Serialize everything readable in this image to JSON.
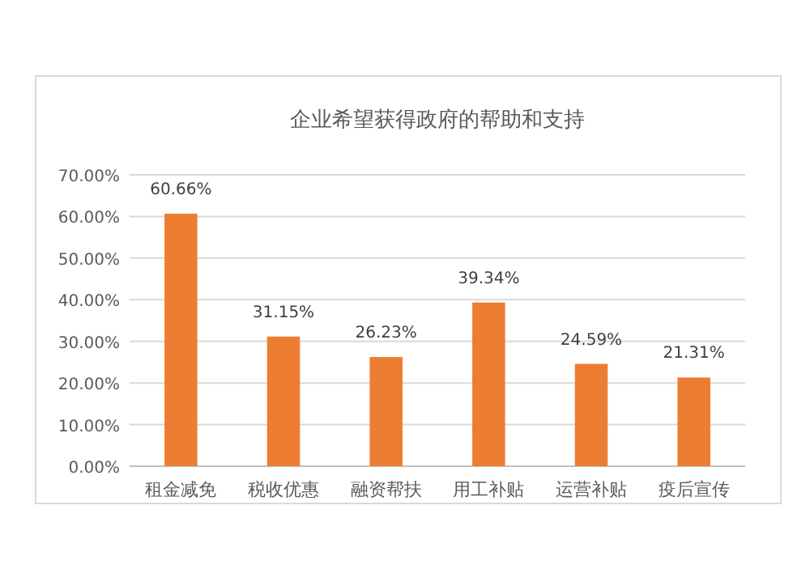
{
  "chart_data": {
    "type": "bar",
    "title": "企业希望获得政府的帮助和支持",
    "categories": [
      "租金减免",
      "税收优惠",
      "融资帮扶",
      "用工补贴",
      "运营补贴",
      "疫后宣传"
    ],
    "values": [
      60.66,
      31.15,
      26.23,
      39.34,
      24.59,
      21.31
    ],
    "value_labels": [
      "60.66%",
      "31.15%",
      "26.23%",
      "39.34%",
      "24.59%",
      "21.31%"
    ],
    "color": "#ed7d31",
    "ylim": [
      0,
      70
    ],
    "yticks": [
      {
        "value": 0,
        "label": "0.00%"
      },
      {
        "value": 10,
        "label": "10.00%"
      },
      {
        "value": 20,
        "label": "20.00%"
      },
      {
        "value": 30,
        "label": "30.00%"
      },
      {
        "value": 40,
        "label": "40.00%"
      },
      {
        "value": 50,
        "label": "50.00%"
      },
      {
        "value": 60,
        "label": "60.00%"
      },
      {
        "value": 70,
        "label": "70.00%"
      }
    ],
    "grid": "y"
  }
}
